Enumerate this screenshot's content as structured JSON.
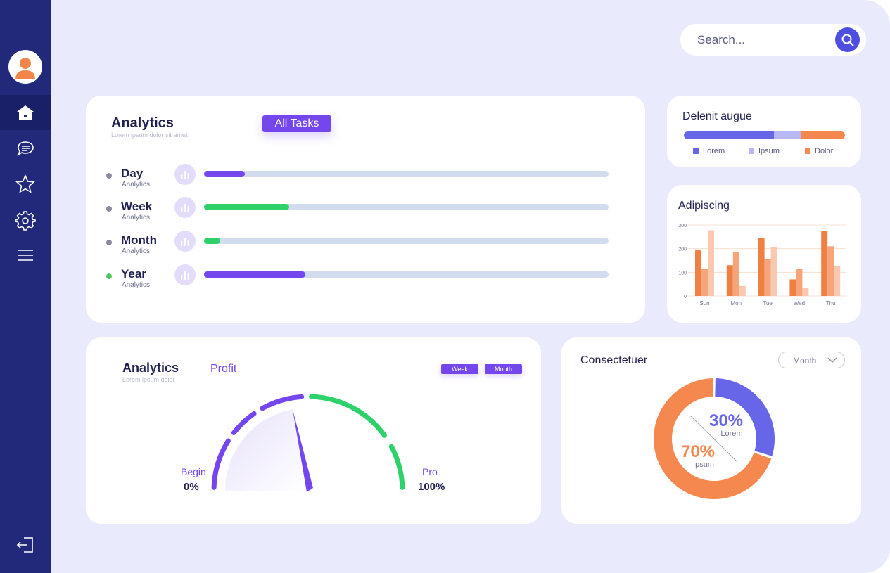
{
  "search": {
    "placeholder": "Search..."
  },
  "sidebar": {
    "items": [
      {
        "name": "home",
        "icon": "home-icon",
        "active": true
      },
      {
        "name": "messages",
        "icon": "chat-bubbles-icon"
      },
      {
        "name": "favorites",
        "icon": "star-icon"
      },
      {
        "name": "settings",
        "icon": "gear-icon"
      },
      {
        "name": "menu",
        "icon": "hamburger-menu-icon"
      }
    ],
    "logout_icon": "logout-icon"
  },
  "analytics": {
    "title": "Analytics",
    "subtitle": "Lorem ipsum dolor sit amet",
    "all_tasks_label": "All Tasks",
    "rows": [
      {
        "label": "Day",
        "sub": "Analytics",
        "progress": 0.1,
        "color": "#7446ee",
        "dot": "#8a8ba0"
      },
      {
        "label": "Week",
        "sub": "Analytics",
        "progress": 0.21,
        "color": "#2fd16b",
        "dot": "#8a8ba0"
      },
      {
        "label": "Month",
        "sub": "Analytics",
        "progress": 0.04,
        "color": "#2fd16b",
        "dot": "#8a8ba0"
      },
      {
        "label": "Year",
        "sub": "Analytics",
        "progress": 0.25,
        "color": "#7446ee",
        "dot": "#53c65b"
      }
    ]
  },
  "delenit": {
    "title": "Delenit augue",
    "segments": [
      {
        "name": "Lorem",
        "share": 0.56,
        "color": "#6766e8"
      },
      {
        "name": "Ipsum",
        "share": 0.17,
        "color": "#b7b8f5"
      },
      {
        "name": "Dolor",
        "share": 0.27,
        "color": "#f5884f"
      }
    ]
  },
  "adipiscing": {
    "title": "Adipiscing",
    "chart_data": {
      "type": "bar",
      "categories": [
        "Sun",
        "Mon",
        "Tue",
        "Wed",
        "Thu"
      ],
      "series": [
        {
          "values": [
            195,
            130,
            245,
            70,
            275
          ],
          "color": "#f07f42"
        },
        {
          "values": [
            115,
            185,
            155,
            115,
            210
          ],
          "color": "#f6a57a"
        },
        {
          "values": [
            278,
            42,
            205,
            35,
            128
          ],
          "color": "#f8c9b0"
        }
      ],
      "yticks": [
        0,
        100,
        200,
        300
      ],
      "ylim": [
        0,
        300
      ],
      "grid": true
    }
  },
  "profit": {
    "title": "Analytics",
    "subtitle": "Lorem ipsum dolor",
    "profit_label": "Profit",
    "week_label": "Week",
    "month_label": "Month",
    "begin_label": "Begin",
    "begin_value": "0%",
    "pro_label": "Pro",
    "pro_value": "100%",
    "needle_value": 0.44,
    "colors": {
      "purple": "#7446ee",
      "green": "#2fd16b"
    }
  },
  "consectetuer": {
    "title": "Consectetuer",
    "select_value": "Month",
    "chart_data": {
      "type": "pie",
      "slices": [
        {
          "label": "Lorem",
          "percent": 30,
          "display": "30%",
          "color": "#6766e8"
        },
        {
          "label": "Ipsum",
          "percent": 70,
          "display": "70%",
          "color": "#f5884f"
        }
      ]
    }
  }
}
